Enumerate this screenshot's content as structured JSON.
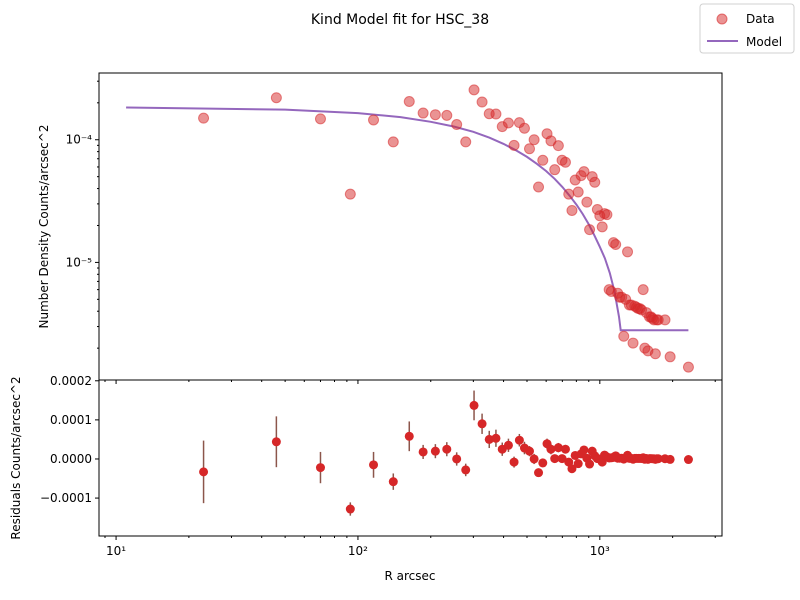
{
  "chart_data": {
    "title": "Kind Model fit for HSC_38",
    "legend": {
      "placement": "top-right",
      "entries": [
        {
          "label": "Data",
          "marker": "circle",
          "color": "#d62728"
        },
        {
          "label": "Model",
          "marker": "line",
          "color": "#9467bd"
        }
      ]
    },
    "colors": {
      "data": "#d62728",
      "model": "#9467bd",
      "errorbar": "#8c564b"
    },
    "xlabel": "R arcsec",
    "xscale": "log",
    "xlim": [
      8.5,
      3200
    ],
    "x_tick_labels": [
      "10¹",
      "10²",
      "10³"
    ],
    "charts": [
      {
        "type": "scatter",
        "ylabel": "Number Density Counts/arcsec^2",
        "yscale": "log",
        "ylim": [
          1.1e-06,
          0.00035
        ],
        "y_tick_labels": [
          "10⁻⁵",
          "10⁻⁴"
        ],
        "series": [
          {
            "name": "Data",
            "x": [
              23,
              46,
              70,
              93,
              116,
              140,
              163,
              186,
              209,
              233,
              256,
              279,
              302,
              326,
              349,
              372,
              395,
              419,
              442,
              465,
              488,
              512,
              535,
              558,
              581,
              605,
              628,
              651,
              674,
              698,
              721,
              744,
              767,
              791,
              814,
              837,
              860,
              884,
              907,
              930,
              953,
              977,
              1000,
              1023,
              1046,
              1070,
              1093,
              1116,
              1139,
              1163,
              1186,
              1209,
              1232,
              1256,
              1279,
              1302,
              1325,
              1349,
              1372,
              1395,
              1418,
              1442,
              1465,
              1488,
              1511,
              1535,
              1558,
              1581,
              1604,
              1628,
              1651,
              1674,
              1697,
              1721,
              1744,
              1860,
              1953,
              2325
            ],
            "y": [
              0.00015,
              0.00022,
              0.000148,
              3.6e-05,
              0.000145,
              9.6e-05,
              0.000205,
              0.000165,
              0.00016,
              0.000158,
              0.000133,
              9.6e-05,
              0.000255,
              0.000203,
              0.000163,
              0.000162,
              0.000128,
              0.000137,
              9e-05,
              0.000138,
              0.000124,
              8.45e-05,
              0.0001,
              4.12e-05,
              6.8e-05,
              0.000112,
              9.8e-05,
              5.7e-05,
              8.95e-05,
              6.8e-05,
              6.55e-05,
              3.6e-05,
              2.65e-05,
              4.7e-05,
              3.75e-05,
              5.1e-05,
              5.5e-05,
              3.1e-05,
              1.85e-05,
              5e-05,
              4.5e-05,
              2.7e-05,
              2.4e-05,
              1.95e-05,
              2.5e-05,
              2.45e-05,
              6e-06,
              5.8e-06,
              1.45e-05,
              1.4e-05,
              5.6e-06,
              5.2e-06,
              5.2e-06,
              2.5e-06,
              5e-06,
              1.22e-05,
              4.5e-06,
              4.5e-06,
              2.2e-06,
              4.4e-06,
              4.3e-06,
              4.2e-06,
              4.2e-06,
              4.1e-06,
              6e-06,
              2e-06,
              3.9e-06,
              1.9e-06,
              3.6e-06,
              3.6e-06,
              3.5e-06,
              3.4e-06,
              1.8e-06,
              3.4e-06,
              3.4e-06,
              3.4e-06,
              1.7e-06,
              1.4e-06
            ]
          },
          {
            "name": "Model",
            "x": [
              11,
              50,
              100,
              150,
              200,
              250,
              300,
              350,
              400,
              450,
              500,
              550,
              600,
              650,
              700,
              750,
              800,
              850,
              900,
              950,
              1000,
              1050,
              1100,
              1150,
              1200,
              1220,
              1240,
              1300,
              1500,
              2000,
              2325
            ],
            "y": [
              0.000183,
              0.000176,
              0.000165,
              0.000153,
              0.00014,
              0.000128,
              0.000116,
              0.000104,
              9.25e-05,
              8.2e-05,
              7.25e-05,
              6.35e-05,
              5.55e-05,
              4.8e-05,
              4.12e-05,
              3.5e-05,
              2.96e-05,
              2.48e-05,
              2.04e-05,
              1.66e-05,
              1.34e-05,
              1.08e-05,
              8.2e-06,
              5.8e-06,
              3.6e-06,
              2.8e-06,
              2.8e-06,
              2.8e-06,
              2.8e-06,
              2.8e-06,
              2.8e-06
            ]
          }
        ]
      },
      {
        "type": "scatter",
        "ylabel": "Residuals Counts/arcsec^2",
        "yscale": "linear",
        "ylim": [
          -0.000197,
          0.000202
        ],
        "y_ticks": [
          -0.0001,
          0.0,
          0.0001,
          0.0002
        ],
        "y_tick_labels": [
          "−0.0001",
          "0.0000",
          "0.0001",
          "0.0002"
        ],
        "series": [
          {
            "name": "Residuals",
            "x": [
              23,
              46,
              70,
              93,
              116,
              140,
              163,
              186,
              209,
              233,
              256,
              279,
              302,
              326,
              349,
              372,
              395,
              419,
              442,
              465,
              488,
              512,
              535,
              558,
              581,
              605,
              628,
              651,
              674,
              698,
              721,
              744,
              767,
              791,
              814,
              837,
              860,
              884,
              907,
              930,
              953,
              977,
              1000,
              1023,
              1046,
              1070,
              1093,
              1116,
              1139,
              1163,
              1186,
              1209,
              1232,
              1256,
              1279,
              1302,
              1325,
              1349,
              1372,
              1395,
              1418,
              1442,
              1465,
              1488,
              1511,
              1535,
              1558,
              1581,
              1604,
              1628,
              1651,
              1674,
              1697,
              1721,
              1744,
              1860,
              1953,
              2325
            ],
            "y": [
              -3.3e-05,
              4.4e-05,
              -2.2e-05,
              -0.000128,
              -1.5e-05,
              -5.8e-05,
              5.8e-05,
              1.8e-05,
              2e-05,
              2.5e-05,
              0.0,
              -2.8e-05,
              0.000137,
              9e-05,
              5e-05,
              5.3e-05,
              2.5e-05,
              3.5e-05,
              -8e-06,
              4.8e-05,
              2.8e-05,
              2e-05,
              0.0,
              -3.5e-05,
              -1e-05,
              3.9e-05,
              2.5e-05,
              1e-06,
              2.9e-05,
              1e-06,
              2.5e-05,
              -8e-06,
              -2.5e-05,
              9e-06,
              -1.2e-05,
              1.3e-05,
              2.3e-05,
              2e-06,
              -1.3e-05,
              2e-05,
              8e-06,
              1e-06,
              0.0,
              -8e-06,
              1e-05,
              5.5e-06,
              2.5e-06,
              3e-06,
              4e-06,
              8e-06,
              2e-06,
              2e-06,
              2e-06,
              -3e-07,
              2.2e-06,
              9.4e-06,
              1.7e-06,
              1.7e-06,
              -6e-07,
              1.6e-06,
              1.5e-06,
              1.4e-06,
              1.4e-06,
              1.3e-06,
              3.2e-06,
              -8e-07,
              1.1e-06,
              -9e-07,
              8e-07,
              8e-07,
              7e-07,
              6e-07,
              -1e-06,
              6e-07,
              6e-07,
              6e-07,
              -1.1e-06,
              -1.4e-06
            ],
            "yerr": [
              8e-05,
              6.5e-05,
              4e-05,
              1.7e-05,
              3.3e-05,
              2.1e-05,
              3.8e-05,
              1.8e-05,
              1.8e-05,
              1.8e-05,
              1.7e-05,
              1.6e-05,
              3.8e-05,
              2.6e-05,
              2.2e-05,
              2.2e-05,
              1.7e-05,
              1.7e-05,
              1.4e-05,
              1.6e-05,
              1.6e-05,
              1.3e-05,
              1.3e-05,
              8.5e-06,
              1.1e-05,
              1.3e-05,
              1.3e-05,
              9e-06,
              1.2e-05,
              9e-06,
              1.1e-05,
              7.5e-06,
              6.5e-06,
              9e-06,
              8e-06,
              9e-06,
              9e-06,
              7e-06,
              5.5e-06,
              9e-06,
              8e-06,
              6e-06,
              6.5e-06,
              6e-06,
              6.5e-06,
              6.5e-06,
              3e-06,
              3e-06,
              5e-06,
              5e-06,
              3e-06,
              3e-06,
              3e-06,
              2e-06,
              3e-06,
              4.5e-06,
              2.5e-06,
              2.5e-06,
              2e-06,
              2.5e-06,
              2.5e-06,
              2.5e-06,
              2.5e-06,
              2.5e-06,
              3e-06,
              2e-06,
              2.5e-06,
              2e-06,
              2e-06,
              2e-06,
              2e-06,
              2e-06,
              2e-06,
              2e-06,
              2e-06,
              2e-06,
              2e-06,
              2e-06
            ]
          }
        ]
      }
    ]
  }
}
